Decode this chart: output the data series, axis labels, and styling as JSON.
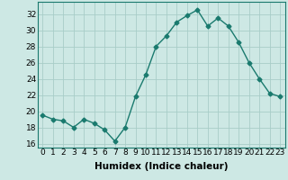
{
  "x": [
    0,
    1,
    2,
    3,
    4,
    5,
    6,
    7,
    8,
    9,
    10,
    11,
    12,
    13,
    14,
    15,
    16,
    17,
    18,
    19,
    20,
    21,
    22,
    23
  ],
  "y": [
    19.5,
    19.0,
    18.8,
    18.0,
    19.0,
    18.5,
    17.7,
    16.3,
    18.0,
    21.8,
    24.5,
    28.0,
    29.3,
    31.0,
    31.8,
    32.5,
    30.5,
    31.5,
    30.5,
    28.5,
    26.0,
    24.0,
    22.2,
    21.8
  ],
  "line_color": "#1a7a6e",
  "bg_color": "#cde8e4",
  "grid_color": "#a8cdc8",
  "xlabel": "Humidex (Indice chaleur)",
  "ylim": [
    15.5,
    33.5
  ],
  "xlim": [
    -0.5,
    23.5
  ],
  "yticks": [
    16,
    18,
    20,
    22,
    24,
    26,
    28,
    30,
    32
  ],
  "xticks": [
    0,
    1,
    2,
    3,
    4,
    5,
    6,
    7,
    8,
    9,
    10,
    11,
    12,
    13,
    14,
    15,
    16,
    17,
    18,
    19,
    20,
    21,
    22,
    23
  ],
  "xlabel_fontsize": 7.5,
  "tick_fontsize": 6.5,
  "marker": "D",
  "markersize": 2.5,
  "linewidth": 1.0
}
